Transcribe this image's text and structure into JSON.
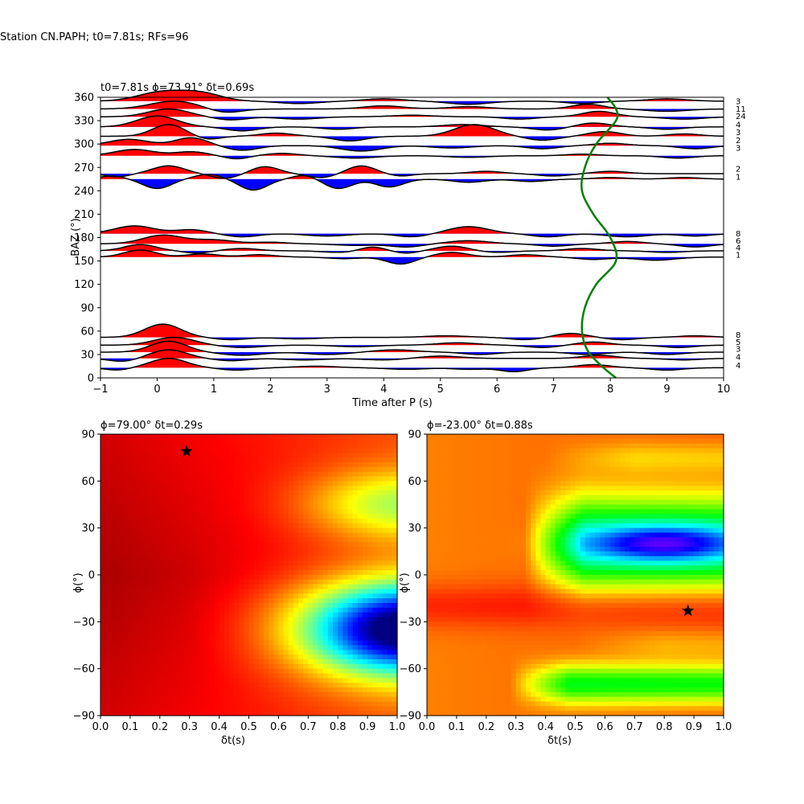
{
  "figure": {
    "suptitle": "Station CN.PAPH; t0=7.81s; RFs=96"
  },
  "chart_data": [
    {
      "type": "line",
      "panel": "receiver-functions",
      "title": "t0=7.81s ϕ=73.91° δt=0.69s",
      "xlabel": "Time after P (s)",
      "ylabel": "BAZ (°)",
      "xlim": [
        -1,
        10
      ],
      "ylim": [
        0,
        360
      ],
      "xticks": [
        -1,
        0,
        1,
        2,
        3,
        4,
        5,
        6,
        7,
        8,
        9,
        10
      ],
      "yticks": [
        0,
        30,
        60,
        90,
        120,
        150,
        180,
        210,
        240,
        270,
        300,
        330,
        360
      ],
      "positive_fill": "#ff0000",
      "negative_fill": "#0000ff",
      "trace_count_labels": [
        "3",
        "11",
        "24",
        "4",
        "3",
        "2",
        "3",
        "2",
        "1",
        "8",
        "6",
        "4",
        "1",
        "8",
        "5",
        "3",
        "4",
        "4"
      ],
      "series": [
        {
          "baz": 355,
          "count": "3",
          "amp": 4,
          "peaks": [
            [
              0.1,
              12,
              0.6
            ],
            [
              0.8,
              9,
              0.5
            ],
            [
              2.5,
              -3,
              0.5
            ],
            [
              4.0,
              3,
              0.5
            ],
            [
              5.5,
              -4,
              0.5
            ],
            [
              7.5,
              -3,
              0.4
            ],
            [
              9.0,
              3,
              0.5
            ]
          ]
        },
        {
          "baz": 345,
          "count": "11",
          "amp": 4,
          "peaks": [
            [
              0.3,
              10,
              0.6
            ],
            [
              1.2,
              -5,
              0.4
            ],
            [
              4.0,
              4,
              0.5
            ],
            [
              5.5,
              3,
              0.5
            ],
            [
              7.6,
              6,
              0.4
            ],
            [
              9.0,
              -3,
              0.5
            ]
          ]
        },
        {
          "baz": 335,
          "count": "24",
          "amp": 4,
          "peaks": [
            [
              0.2,
              10,
              0.5
            ],
            [
              1.3,
              -4,
              0.4
            ],
            [
              2.5,
              -3,
              0.5
            ],
            [
              4.5,
              2,
              0.5
            ],
            [
              6.4,
              -3,
              0.4
            ],
            [
              7.8,
              7,
              0.4
            ],
            [
              9.3,
              -3,
              0.5
            ]
          ]
        },
        {
          "baz": 322,
          "count": "4",
          "amp": 4,
          "peaks": [
            [
              0.0,
              14,
              0.5
            ],
            [
              1.5,
              -5,
              0.4
            ],
            [
              3.2,
              -3,
              0.4
            ],
            [
              5.4,
              3,
              0.5
            ],
            [
              6.9,
              -4,
              0.4
            ],
            [
              7.7,
              5,
              0.4
            ],
            [
              9.0,
              -3,
              0.4
            ]
          ]
        },
        {
          "baz": 310,
          "count": "3",
          "amp": 4,
          "peaks": [
            [
              0.2,
              15,
              0.4
            ],
            [
              0.9,
              -4,
              0.3
            ],
            [
              2.1,
              4,
              0.4
            ],
            [
              3.4,
              -6,
              0.4
            ],
            [
              5.6,
              15,
              0.5
            ],
            [
              6.8,
              -5,
              0.4
            ],
            [
              7.9,
              6,
              0.4
            ],
            [
              9.3,
              3,
              0.4
            ]
          ]
        },
        {
          "baz": 298,
          "count": "2",
          "amp": 4,
          "peaks": [
            [
              -0.5,
              8,
              0.5
            ],
            [
              0.6,
              10,
              0.4
            ],
            [
              1.5,
              -6,
              0.4
            ],
            [
              3.6,
              -7,
              0.5
            ],
            [
              5.2,
              -3,
              0.5
            ],
            [
              6.8,
              -4,
              0.4
            ],
            [
              8.0,
              3,
              0.4
            ],
            [
              9.5,
              -4,
              0.4
            ]
          ]
        },
        {
          "baz": 285,
          "count": "3",
          "amp": 4,
          "peaks": [
            [
              -0.4,
              8,
              0.5
            ],
            [
              0.6,
              5,
              0.4
            ],
            [
              1.4,
              -4,
              0.3
            ],
            [
              2.2,
              3,
              0.4
            ],
            [
              3.5,
              -3,
              0.5
            ],
            [
              5.5,
              -2,
              0.5
            ],
            [
              7.5,
              2,
              0.4
            ],
            [
              9.2,
              -3,
              0.4
            ]
          ]
        },
        {
          "baz": 262,
          "count": "2",
          "amp": 4,
          "peaks": [
            [
              -0.7,
              -4,
              0.3
            ],
            [
              0.2,
              10,
              0.4
            ],
            [
              1.2,
              -6,
              0.35
            ],
            [
              1.9,
              9,
              0.35
            ],
            [
              2.9,
              -5,
              0.35
            ],
            [
              3.6,
              10,
              0.35
            ],
            [
              4.3,
              -3,
              0.3
            ],
            [
              5.8,
              3,
              0.4
            ],
            [
              7.0,
              -3,
              0.4
            ],
            [
              8.0,
              3,
              0.4
            ]
          ]
        },
        {
          "baz": 255,
          "count": "1",
          "amp": 4,
          "peaks": [
            [
              -0.8,
              4,
              0.3
            ],
            [
              0.0,
              -12,
              0.35
            ],
            [
              0.9,
              6,
              0.35
            ],
            [
              1.7,
              -14,
              0.35
            ],
            [
              2.6,
              5,
              0.3
            ],
            [
              3.2,
              -12,
              0.35
            ],
            [
              4.1,
              -10,
              0.35
            ],
            [
              5.5,
              -4,
              0.4
            ],
            [
              6.6,
              -3,
              0.4
            ],
            [
              8.0,
              2,
              0.4
            ],
            [
              9.3,
              2,
              0.4
            ]
          ]
        },
        {
          "baz": 185,
          "count": "8",
          "amp": 4,
          "peaks": [
            [
              -0.4,
              10,
              0.5
            ],
            [
              0.6,
              5,
              0.4
            ],
            [
              1.5,
              -4,
              0.4
            ],
            [
              3.0,
              -3,
              0.5
            ],
            [
              4.5,
              -4,
              0.4
            ],
            [
              5.5,
              9,
              0.5
            ],
            [
              6.9,
              -4,
              0.4
            ],
            [
              8.3,
              -4,
              0.5
            ],
            [
              9.5,
              -3,
              0.4
            ]
          ]
        },
        {
          "baz": 172,
          "count": "6",
          "amp": 4,
          "peaks": [
            [
              0.1,
              11,
              0.5
            ],
            [
              1.0,
              5,
              0.5
            ],
            [
              2.0,
              2,
              0.4
            ],
            [
              3.5,
              -2,
              0.5
            ],
            [
              4.4,
              -4,
              0.4
            ],
            [
              5.5,
              4,
              0.5
            ],
            [
              7.0,
              -3,
              0.4
            ],
            [
              8.3,
              3,
              0.4
            ],
            [
              9.5,
              -4,
              0.4
            ]
          ]
        },
        {
          "baz": 163,
          "count": "4",
          "amp": 4,
          "peaks": [
            [
              -0.3,
              8,
              0.4
            ],
            [
              0.7,
              -3,
              0.3
            ],
            [
              1.5,
              3,
              0.4
            ],
            [
              3.2,
              -2,
              0.4
            ],
            [
              3.8,
              5,
              0.3
            ],
            [
              4.4,
              -3,
              0.3
            ],
            [
              5.2,
              6,
              0.4
            ],
            [
              6.0,
              -2,
              0.4
            ],
            [
              7.5,
              3,
              0.4
            ],
            [
              9.0,
              -2,
              0.4
            ]
          ]
        },
        {
          "baz": 155,
          "count": "1",
          "amp": 4,
          "peaks": [
            [
              -0.3,
              9,
              0.4
            ],
            [
              0.8,
              4,
              0.4
            ],
            [
              1.8,
              3,
              0.4
            ],
            [
              3.3,
              -2,
              0.4
            ],
            [
              4.3,
              -9,
              0.35
            ],
            [
              5.2,
              6,
              0.4
            ],
            [
              6.5,
              3,
              0.4
            ],
            [
              7.7,
              -3,
              0.4
            ],
            [
              8.8,
              -4,
              0.5
            ]
          ]
        },
        {
          "baz": 52,
          "count": "8",
          "amp": 4,
          "peaks": [
            [
              0.1,
              17,
              0.45
            ],
            [
              1.3,
              -3,
              0.4
            ],
            [
              2.5,
              -2,
              0.5
            ],
            [
              5.1,
              2,
              0.5
            ],
            [
              6.5,
              -3,
              0.4
            ],
            [
              7.3,
              5,
              0.4
            ],
            [
              8.2,
              -3,
              0.4
            ],
            [
              9.5,
              2,
              0.4
            ]
          ]
        },
        {
          "baz": 42,
          "count": "5",
          "amp": 4,
          "peaks": [
            [
              0.3,
              10,
              0.5
            ],
            [
              1.5,
              -3,
              0.5
            ],
            [
              3.5,
              -2,
              0.5
            ],
            [
              5.3,
              3,
              0.5
            ],
            [
              6.8,
              -3,
              0.4
            ],
            [
              7.7,
              4,
              0.4
            ],
            [
              9.2,
              -3,
              0.4
            ]
          ]
        },
        {
          "baz": 33,
          "count": "3",
          "amp": 4,
          "peaks": [
            [
              0.2,
              14,
              0.45
            ],
            [
              1.5,
              -4,
              0.5
            ],
            [
              3.0,
              -3,
              0.5
            ],
            [
              4.2,
              3,
              0.5
            ],
            [
              5.7,
              -3,
              0.4
            ],
            [
              7.6,
              -3,
              0.4
            ],
            [
              9.0,
              -3,
              0.4
            ]
          ]
        },
        {
          "baz": 25,
          "count": "4",
          "amp": 4,
          "peaks": [
            [
              -0.6,
              -4,
              0.35
            ],
            [
              0.2,
              11,
              0.45
            ],
            [
              1.3,
              -3,
              0.4
            ],
            [
              2.6,
              -2,
              0.5
            ],
            [
              4.0,
              -2,
              0.5
            ],
            [
              5.0,
              3,
              0.5
            ],
            [
              7.8,
              4,
              0.4
            ],
            [
              9.3,
              -2,
              0.4
            ]
          ]
        },
        {
          "baz": 13,
          "count": "4",
          "amp": 4,
          "peaks": [
            [
              -0.7,
              -3,
              0.3
            ],
            [
              0.2,
              12,
              0.45
            ],
            [
              1.4,
              -3,
              0.4
            ],
            [
              2.8,
              2,
              0.5
            ],
            [
              4.4,
              -2,
              0.5
            ],
            [
              5.5,
              -2,
              0.4
            ],
            [
              6.3,
              -5,
              0.35
            ],
            [
              7.7,
              4,
              0.4
            ],
            [
              9.0,
              -3,
              0.4
            ]
          ]
        }
      ],
      "predicted_curve": {
        "color": "#008000",
        "points": [
          [
            8.1,
            0
          ],
          [
            7.85,
            15
          ],
          [
            7.6,
            35
          ],
          [
            7.5,
            60
          ],
          [
            7.55,
            90
          ],
          [
            7.75,
            120
          ],
          [
            8.1,
            150
          ],
          [
            8.0,
            180
          ],
          [
            7.7,
            210
          ],
          [
            7.5,
            240
          ],
          [
            7.55,
            270
          ],
          [
            7.75,
            300
          ],
          [
            8.1,
            330
          ],
          [
            8.1,
            345
          ],
          [
            7.95,
            360
          ]
        ]
      }
    },
    {
      "type": "heatmap",
      "panel": "grid-search-left",
      "title": "ϕ=79.00° δt=0.29s",
      "xlabel": "δt(s)",
      "ylabel": "ϕ(°)",
      "xlim": [
        0,
        1
      ],
      "ylim": [
        -90,
        90
      ],
      "xticks": [
        0.0,
        0.1,
        0.2,
        0.3,
        0.4,
        0.5,
        0.6,
        0.7,
        0.8,
        0.9,
        1.0
      ],
      "yticks": [
        -90,
        -60,
        -30,
        0,
        30,
        60,
        90
      ],
      "colormap": "jet",
      "best_fit": {
        "dt": 0.29,
        "phi": 79.0,
        "marker": "star"
      }
    },
    {
      "type": "heatmap",
      "panel": "grid-search-right",
      "title": "ϕ=-23.00° δt=0.88s",
      "xlabel": "δt(s)",
      "ylabel": "ϕ(°)",
      "xlim": [
        0,
        1
      ],
      "ylim": [
        -90,
        90
      ],
      "xticks": [
        0.0,
        0.1,
        0.2,
        0.3,
        0.4,
        0.5,
        0.6,
        0.7,
        0.8,
        0.9,
        1.0
      ],
      "yticks": [
        -90,
        -60,
        -30,
        0,
        30,
        60,
        90
      ],
      "colormap": "hsv",
      "best_fit": {
        "dt": 0.88,
        "phi": -23.0,
        "marker": "star"
      }
    }
  ]
}
